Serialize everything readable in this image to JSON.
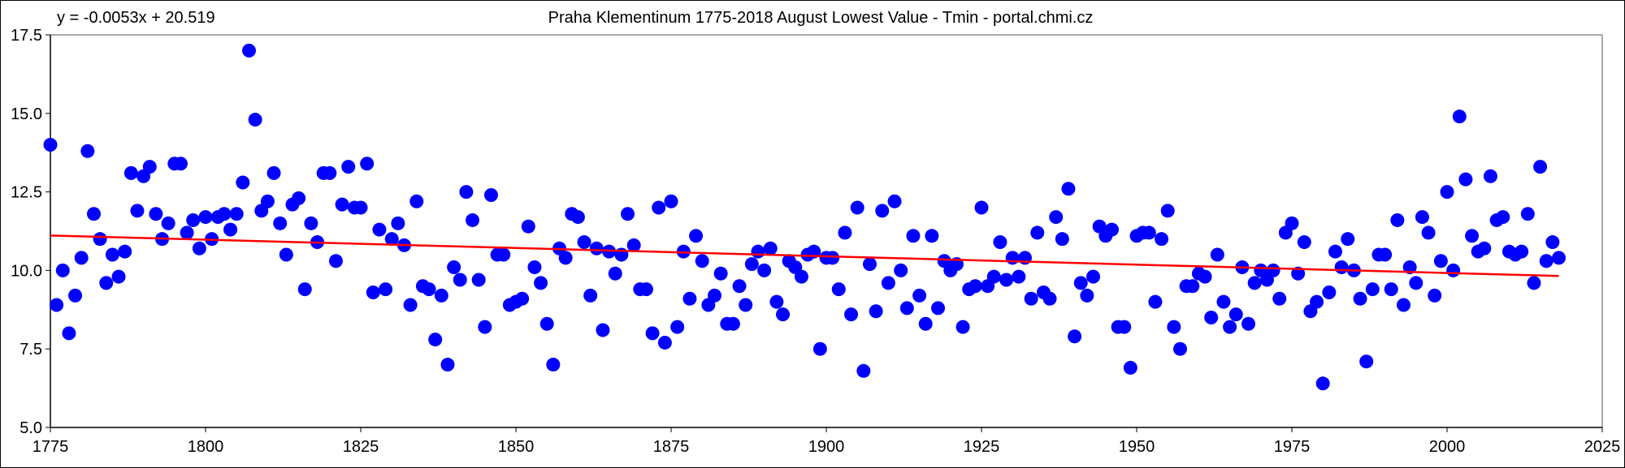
{
  "chart_data": {
    "type": "scatter",
    "title": "Praha Klementinum 1775-2018 August Lowest Value - Tmin - portal.chmi.cz",
    "equation": "y = -0.0053x + 20.519",
    "xlabel": "",
    "ylabel": "",
    "xlim": [
      1775,
      2025
    ],
    "ylim": [
      5.0,
      17.5
    ],
    "xticks": [
      "1775",
      "1800",
      "1825",
      "1850",
      "1875",
      "1900",
      "1925",
      "1950",
      "1975",
      "2000",
      "2025"
    ],
    "yticks": [
      "5.0",
      "7.5",
      "10.0",
      "12.5",
      "15.0",
      "17.5"
    ],
    "grid": false,
    "legend": "none",
    "marker_color": "#0000ff",
    "trend_color": "#ff0000",
    "trend": {
      "slope": -0.0053,
      "intercept": 20.519,
      "x_start": 1775,
      "x_end": 2018
    },
    "x_start": 1775,
    "values": [
      14.0,
      8.9,
      10.0,
      8.0,
      9.2,
      10.4,
      13.8,
      11.8,
      11.0,
      9.6,
      10.5,
      9.8,
      10.6,
      13.1,
      11.9,
      13.0,
      13.3,
      11.8,
      11.0,
      11.5,
      13.4,
      13.4,
      11.2,
      11.6,
      10.7,
      11.7,
      11.0,
      11.7,
      11.8,
      11.3,
      11.8,
      12.8,
      17.0,
      14.8,
      11.9,
      12.2,
      13.1,
      11.5,
      10.5,
      12.1,
      12.3,
      9.4,
      11.5,
      10.9,
      13.1,
      13.1,
      10.3,
      12.1,
      13.3,
      12.0,
      12.0,
      13.4,
      9.3,
      11.3,
      9.4,
      11.0,
      11.5,
      10.8,
      8.9,
      12.2,
      9.5,
      9.4,
      7.8,
      9.2,
      7.0,
      10.1,
      9.7,
      12.5,
      11.6,
      9.7,
      8.2,
      12.4,
      10.5,
      10.5,
      8.9,
      9.0,
      9.1,
      11.4,
      10.1,
      9.6,
      8.3,
      7.0,
      10.7,
      10.4,
      11.8,
      11.7,
      10.9,
      9.2,
      10.7,
      8.1,
      10.6,
      9.9,
      10.5,
      11.8,
      10.8,
      9.4,
      9.4,
      8.0,
      12.0,
      7.7,
      12.2,
      8.2,
      10.6,
      9.1,
      11.1,
      10.3,
      8.9,
      9.2,
      9.9,
      8.3,
      8.3,
      9.5,
      8.9,
      10.2,
      10.6,
      10.0,
      10.7,
      9.0,
      8.6,
      10.3,
      10.1,
      9.8,
      10.5,
      10.6,
      7.5,
      10.4,
      10.4,
      9.4,
      11.2,
      8.6,
      12.0,
      6.8,
      10.2,
      8.7,
      11.9,
      9.6,
      12.2,
      10.0,
      8.8,
      11.1,
      9.2,
      8.3,
      11.1,
      8.8,
      10.3,
      10.0,
      10.2,
      8.2,
      9.4,
      9.5,
      12.0,
      9.5,
      9.8,
      10.9,
      9.7,
      10.4,
      9.8,
      10.4,
      9.1,
      11.2,
      9.3,
      9.1,
      11.7,
      11.0,
      12.6,
      7.9,
      9.6,
      9.2,
      9.8,
      11.4,
      11.1,
      11.3,
      8.2,
      8.2,
      6.9,
      11.1,
      11.2,
      11.2,
      9.0,
      11.0,
      11.9,
      8.2,
      7.5,
      9.5,
      9.5,
      9.9,
      9.8,
      8.5,
      10.5,
      9.0,
      8.2,
      8.6,
      10.1,
      8.3,
      9.6,
      10.0,
      9.7,
      10.0,
      9.1,
      11.2,
      11.5,
      9.9,
      10.9,
      8.7,
      9.0,
      6.4,
      9.3,
      10.6,
      10.1,
      11.0,
      10.0,
      9.1,
      7.1,
      9.4,
      10.5,
      10.5,
      9.4,
      11.6,
      8.9,
      10.1,
      9.6,
      11.7,
      11.2,
      9.2,
      10.3,
      12.5,
      10.0,
      14.9,
      12.9,
      11.1,
      10.6,
      10.7,
      13.0,
      11.6,
      11.7,
      10.6,
      10.5,
      10.6,
      11.8,
      9.6,
      13.3,
      10.3,
      10.9,
      10.4
    ]
  }
}
